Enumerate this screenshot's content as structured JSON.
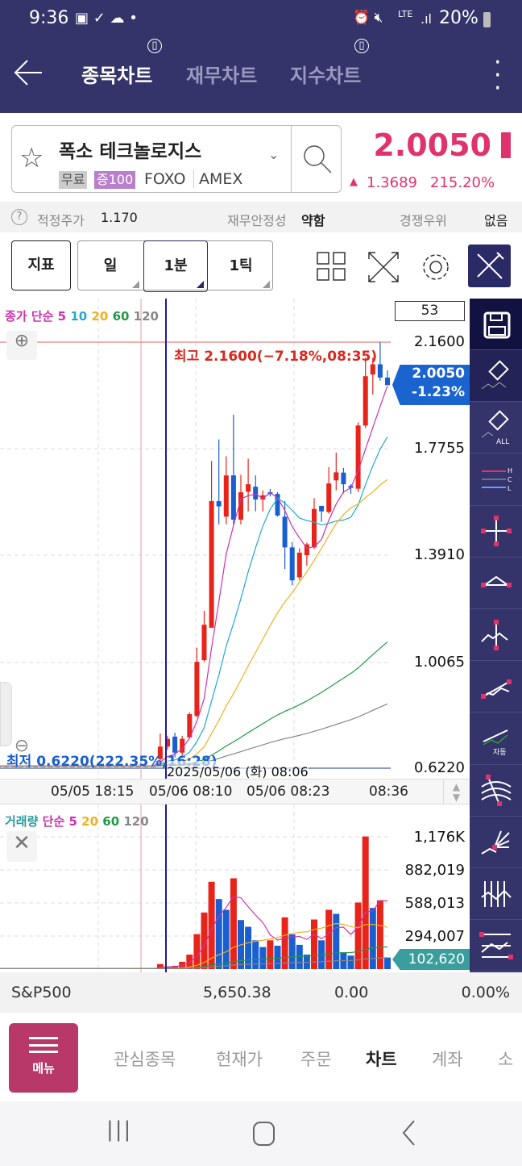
{
  "status_bar": {
    "time": "9:36",
    "battery": "20%",
    "network": "LTE"
  },
  "app_bar": {
    "tabs": [
      {
        "label": "종목차트",
        "active": true
      },
      {
        "label": "재무차트",
        "active": false
      },
      {
        "label": "지수차트",
        "active": false
      }
    ]
  },
  "stock": {
    "name": "폭소 테크놀로지스",
    "badge_free": "무료",
    "badge_margin": "증100",
    "ticker": "FOXO",
    "exchange": "AMEX",
    "price": "2.0050",
    "change": "1.3689",
    "change_pct": "215.20%",
    "up_color": "#e0336e"
  },
  "info": {
    "fair_price_label": "적정주가",
    "fair_price": "1.170",
    "stability_label": "재무안정성",
    "stability": "약함",
    "moat_label": "경쟁우위",
    "moat": "없음"
  },
  "toolbar": {
    "indicator": "지표",
    "periods": [
      {
        "label": "일",
        "selected": false
      },
      {
        "label": "1분",
        "selected": true
      },
      {
        "label": "1틱",
        "selected": false
      }
    ]
  },
  "chart": {
    "count_box": "53",
    "legend": {
      "title": "종가 단순",
      "periods": [
        "5",
        "10",
        "20",
        "60",
        "120"
      ]
    },
    "high_note": "최고 2.1600(−7.18%,08:35)",
    "low_note": "최저 0.6220(222.35%,16:28)",
    "crosshair_time": "2025/05/06 (화) 08:06",
    "price_axis": [
      "2.1600",
      "1.7755",
      "1.3910",
      "1.0065",
      "0.6220"
    ],
    "current_price": "2.0050",
    "current_change": "-1.23%",
    "time_axis": [
      "05/05 18:15",
      "05/06 08:10",
      "05/06 08:23",
      "08:36"
    ],
    "volume_legend": {
      "title": "거래량",
      "sub": "단순",
      "periods": [
        "5",
        "20",
        "60",
        "120"
      ]
    },
    "volume_axis": [
      "1,176K",
      "882,019",
      "588,013",
      "294,007"
    ],
    "current_volume": "102,620"
  },
  "chart_data": {
    "type": "candlestick",
    "ylim": [
      0.622,
      2.16
    ],
    "colors": {
      "up": "#e8231a",
      "down": "#1a5fd0",
      "ma5": "#cc33aa",
      "ma10": "#22aacc",
      "ma20": "#f0b020",
      "ma60": "#229944",
      "ma120": "#888888"
    },
    "ohlc": [
      [
        0.63,
        0.632,
        0.628,
        0.63
      ],
      [
        0.63,
        0.632,
        0.628,
        0.63
      ],
      [
        0.63,
        0.632,
        0.628,
        0.63
      ],
      [
        0.63,
        0.632,
        0.628,
        0.63
      ],
      [
        0.63,
        0.632,
        0.628,
        0.63
      ],
      [
        0.63,
        0.632,
        0.628,
        0.63
      ],
      [
        0.63,
        0.632,
        0.628,
        0.63
      ],
      [
        0.63,
        0.632,
        0.628,
        0.63
      ],
      [
        0.63,
        0.632,
        0.628,
        0.63
      ],
      [
        0.63,
        0.632,
        0.628,
        0.63
      ],
      [
        0.63,
        0.632,
        0.628,
        0.63
      ],
      [
        0.63,
        0.632,
        0.628,
        0.63
      ],
      [
        0.63,
        0.632,
        0.628,
        0.63
      ],
      [
        0.63,
        0.632,
        0.628,
        0.63
      ],
      [
        0.63,
        0.632,
        0.628,
        0.63
      ],
      [
        0.63,
        0.632,
        0.628,
        0.63
      ],
      [
        0.63,
        0.632,
        0.628,
        0.63
      ],
      [
        0.63,
        0.632,
        0.628,
        0.63
      ],
      [
        0.63,
        0.632,
        0.628,
        0.63
      ],
      [
        0.63,
        0.632,
        0.628,
        0.63
      ],
      [
        0.63,
        0.632,
        0.628,
        0.63
      ],
      [
        0.63,
        0.632,
        0.628,
        0.63
      ],
      [
        0.655,
        0.747,
        0.644,
        0.7
      ],
      [
        0.7,
        0.739,
        0.688,
        0.728
      ],
      [
        0.736,
        0.75,
        0.661,
        0.678
      ],
      [
        0.678,
        0.739,
        0.667,
        0.728
      ],
      [
        0.733,
        0.823,
        0.728,
        0.817
      ],
      [
        0.811,
        1.057,
        0.806,
        1.006
      ],
      [
        1.012,
        1.19,
        1.006,
        1.14
      ],
      [
        1.129,
        1.731,
        1.129,
        1.586
      ],
      [
        1.586,
        1.809,
        1.502,
        1.567
      ],
      [
        1.53,
        1.748,
        1.502,
        1.679
      ],
      [
        1.679,
        1.898,
        1.497,
        1.519
      ],
      [
        1.519,
        1.681,
        1.502,
        1.618
      ],
      [
        1.62,
        1.739,
        1.549,
        1.647
      ],
      [
        1.638,
        1.679,
        1.549,
        1.592
      ],
      [
        1.592,
        1.625,
        1.549,
        1.607
      ],
      [
        1.618,
        1.63,
        1.603,
        1.612
      ],
      [
        1.612,
        1.619,
        1.53,
        1.534
      ],
      [
        1.53,
        1.586,
        1.341,
        1.419
      ],
      [
        1.419,
        1.438,
        1.282,
        1.3
      ],
      [
        1.311,
        1.416,
        1.3,
        1.4
      ],
      [
        1.391,
        1.436,
        1.352,
        1.43
      ],
      [
        1.419,
        1.597,
        1.413,
        1.558
      ],
      [
        1.569,
        1.569,
        1.511,
        1.549
      ],
      [
        1.547,
        1.709,
        1.541,
        1.65
      ],
      [
        1.661,
        1.761,
        1.625,
        1.69
      ],
      [
        1.689,
        1.706,
        1.614,
        1.647
      ],
      [
        1.641,
        1.647,
        1.612,
        1.634
      ],
      [
        1.631,
        1.87,
        1.619,
        1.859
      ],
      [
        1.859,
        2.104,
        1.85,
        2.037
      ],
      [
        2.043,
        2.104,
        1.971,
        2.08
      ],
      [
        2.08,
        2.16,
        2.021,
        2.032
      ],
      [
        2.032,
        2.058,
        2.005,
        2.005
      ]
    ],
    "volume": [
      5000,
      5000,
      5000,
      5000,
      5000,
      5000,
      5000,
      5000,
      5000,
      5000,
      5000,
      5000,
      5000,
      5000,
      5000,
      5000,
      5000,
      5000,
      5000,
      5000,
      5000,
      5000,
      45000,
      24000,
      29000,
      65000,
      129000,
      311000,
      503000,
      776000,
      623000,
      527000,
      807000,
      436000,
      376000,
      256000,
      196000,
      256000,
      208000,
      460000,
      309000,
      216000,
      129000,
      441000,
      256000,
      527000,
      491000,
      149000,
      120000,
      592000,
      1179000,
      544000,
      611000,
      102620
    ],
    "volume_up": [
      1,
      1,
      1,
      1,
      1,
      1,
      1,
      1,
      1,
      1,
      1,
      1,
      1,
      1,
      1,
      1,
      1,
      1,
      1,
      1,
      1,
      1,
      1,
      1,
      1,
      1,
      1,
      1,
      1,
      1,
      0,
      0,
      1,
      0,
      0,
      0,
      0,
      1,
      0,
      1,
      0,
      0,
      0,
      1,
      0,
      1,
      0,
      0,
      0,
      1,
      1,
      0,
      1,
      0
    ],
    "volume_ylim": [
      0,
      1176000
    ]
  },
  "index_row": {
    "name": "S&P500",
    "value": "5,650.38",
    "change": "0.00",
    "pct": "0.00%"
  },
  "bottom_nav": {
    "menu": "메뉴",
    "items": [
      {
        "label": "관심종목",
        "active": false
      },
      {
        "label": "현재가",
        "active": false
      },
      {
        "label": "주문",
        "active": false
      },
      {
        "label": "차트",
        "active": true
      },
      {
        "label": "계좌",
        "active": false
      },
      {
        "label": "소",
        "active": false
      }
    ]
  }
}
